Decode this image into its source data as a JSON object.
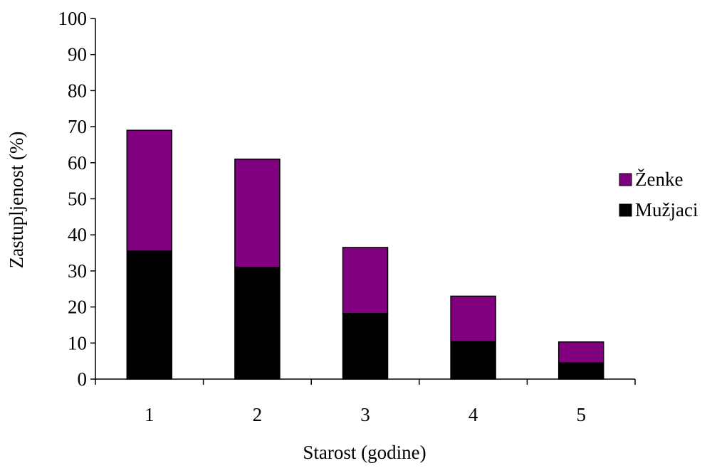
{
  "chart_data": {
    "type": "bar",
    "stacked": true,
    "title": "",
    "xlabel": "Starost (godine)",
    "ylabel": "Zastupljenost (%)",
    "categories": [
      "1",
      "2",
      "3",
      "4",
      "5"
    ],
    "ylim": [
      0,
      100
    ],
    "yticks": [
      "0",
      "10",
      "20",
      "30",
      "40",
      "50",
      "60",
      "70",
      "80",
      "90",
      "100"
    ],
    "series": [
      {
        "name": "Mužjaci",
        "color": "#000000",
        "values": [
          35.5,
          31,
          18.2,
          10.5,
          4.5
        ]
      },
      {
        "name": "Ženke",
        "color": "#800080",
        "values": [
          33.5,
          30,
          18.3,
          12.5,
          5.8
        ]
      }
    ],
    "legend": {
      "position": "right",
      "order": [
        "Ženke",
        "Mužjaci"
      ]
    },
    "grid": false
  }
}
